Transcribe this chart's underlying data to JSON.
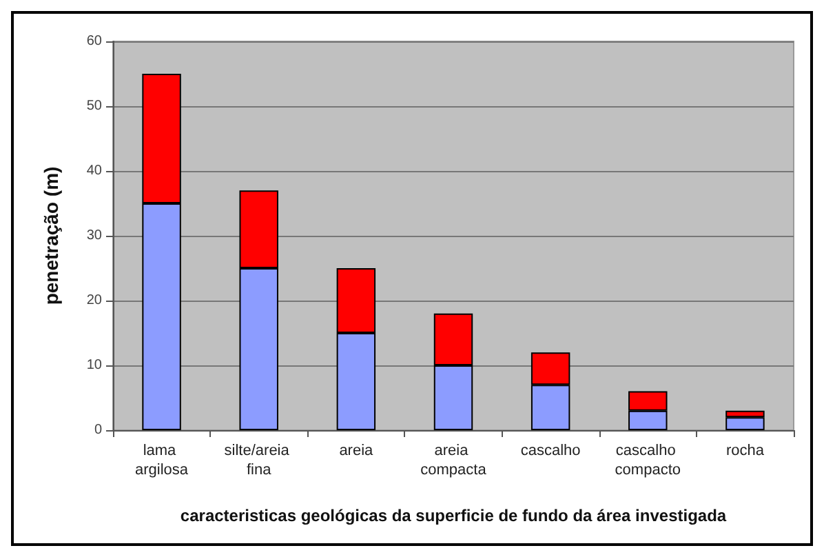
{
  "chart_data": {
    "type": "bar",
    "stacked": true,
    "ylabel": "penetração (m)",
    "xlabel": "caracteristicas geológicas da superficie de fundo da área investigada",
    "categories": [
      "lama argilosa",
      "silte/areia fina",
      "areia",
      "areia compacta",
      "cascalho",
      "cascalho compacto",
      "rocha"
    ],
    "series": [
      {
        "color": "#8c9cff",
        "values": [
          35,
          25,
          15,
          10,
          7,
          3,
          2
        ]
      },
      {
        "color": "#ff0000",
        "values": [
          20,
          12,
          10,
          8,
          5,
          3,
          1
        ]
      }
    ],
    "ylim": [
      0,
      60
    ],
    "yticks": [
      0,
      10,
      20,
      30,
      40,
      50,
      60
    ],
    "grid": "y"
  }
}
